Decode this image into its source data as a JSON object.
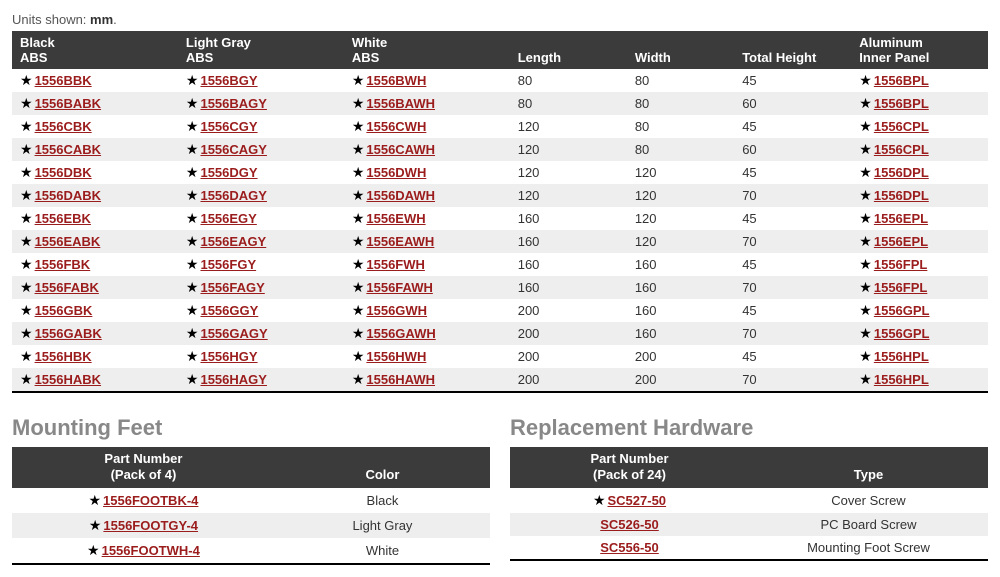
{
  "units_prefix": "Units shown: ",
  "units_value": "mm",
  "units_suffix": ".",
  "main_headers": {
    "c1a": "Black",
    "c1b": "ABS",
    "c2a": "Light Gray",
    "c2b": "ABS",
    "c3a": "White",
    "c3b": "ABS",
    "c4": "Length",
    "c5": "Width",
    "c6": "Total Height",
    "c7a": "Aluminum",
    "c7b": "Inner Panel"
  },
  "rows": [
    {
      "bk": "1556BBK",
      "gy": "1556BGY",
      "wh": "1556BWH",
      "l": "80",
      "w": "80",
      "h": "45",
      "al": "1556BPL"
    },
    {
      "bk": "1556BABK",
      "gy": "1556BAGY",
      "wh": "1556BAWH",
      "l": "80",
      "w": "80",
      "h": "60",
      "al": "1556BPL"
    },
    {
      "bk": "1556CBK",
      "gy": "1556CGY",
      "wh": "1556CWH",
      "l": "120",
      "w": "80",
      "h": "45",
      "al": "1556CPL"
    },
    {
      "bk": "1556CABK",
      "gy": "1556CAGY",
      "wh": "1556CAWH",
      "l": "120",
      "w": "80",
      "h": "60",
      "al": "1556CPL"
    },
    {
      "bk": "1556DBK",
      "gy": "1556DGY",
      "wh": "1556DWH",
      "l": "120",
      "w": "120",
      "h": "45",
      "al": "1556DPL"
    },
    {
      "bk": "1556DABK",
      "gy": "1556DAGY",
      "wh": "1556DAWH",
      "l": "120",
      "w": "120",
      "h": "70",
      "al": "1556DPL"
    },
    {
      "bk": "1556EBK",
      "gy": "1556EGY",
      "wh": "1556EWH",
      "l": "160",
      "w": "120",
      "h": "45",
      "al": "1556EPL"
    },
    {
      "bk": "1556EABK",
      "gy": "1556EAGY",
      "wh": "1556EAWH",
      "l": "160",
      "w": "120",
      "h": "70",
      "al": "1556EPL"
    },
    {
      "bk": "1556FBK",
      "gy": "1556FGY",
      "wh": "1556FWH",
      "l": "160",
      "w": "160",
      "h": "45",
      "al": "1556FPL"
    },
    {
      "bk": "1556FABK",
      "gy": "1556FAGY",
      "wh": "1556FAWH",
      "l": "160",
      "w": "160",
      "h": "70",
      "al": "1556FPL"
    },
    {
      "bk": "1556GBK",
      "gy": "1556GGY",
      "wh": "1556GWH",
      "l": "200",
      "w": "160",
      "h": "45",
      "al": "1556GPL"
    },
    {
      "bk": "1556GABK",
      "gy": "1556GAGY",
      "wh": "1556GAWH",
      "l": "200",
      "w": "160",
      "h": "70",
      "al": "1556GPL"
    },
    {
      "bk": "1556HBK",
      "gy": "1556HGY",
      "wh": "1556HWH",
      "l": "200",
      "w": "200",
      "h": "45",
      "al": "1556HPL"
    },
    {
      "bk": "1556HABK",
      "gy": "1556HAGY",
      "wh": "1556HAWH",
      "l": "200",
      "w": "200",
      "h": "70",
      "al": "1556HPL"
    }
  ],
  "mounting": {
    "title": "Mounting Feet",
    "h1a": "Part Number",
    "h1b": "(Pack of 4)",
    "h2": "Color",
    "rows": [
      {
        "pn": "1556FOOTBK-4",
        "star": true,
        "color": "Black"
      },
      {
        "pn": "1556FOOTGY-4",
        "star": true,
        "color": "Light Gray"
      },
      {
        "pn": "1556FOOTWH-4",
        "star": true,
        "color": "White"
      }
    ]
  },
  "hardware": {
    "title": "Replacement Hardware",
    "h1a": "Part Number",
    "h1b": "(Pack of 24)",
    "h2": "Type",
    "rows": [
      {
        "pn": "SC527-50",
        "star": true,
        "type": "Cover Screw"
      },
      {
        "pn": "SC526-50",
        "star": false,
        "type": "PC Board Screw"
      },
      {
        "pn": "SC556-50",
        "star": false,
        "type": "Mounting Foot Screw"
      }
    ]
  },
  "col_widths": {
    "main": [
      "17%",
      "17%",
      "17%",
      "12%",
      "11%",
      "12%",
      "14%"
    ]
  },
  "colors": {
    "link": "#9b1c1c",
    "header_bg": "#3b3b3b",
    "stripe": "#eeeeee"
  }
}
